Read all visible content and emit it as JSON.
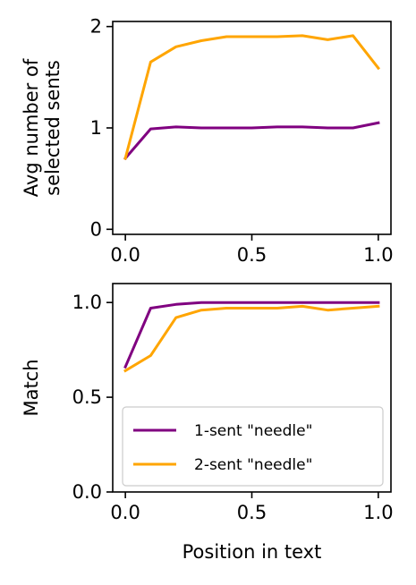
{
  "chart_data": [
    {
      "type": "line",
      "ylabel": [
        "Avg number of",
        "selected sents"
      ],
      "xlabel": "",
      "xlim": [
        0,
        1
      ],
      "ylim": [
        -0.05,
        2.05
      ],
      "xticks": [
        "0.0",
        "0.5",
        "1.0"
      ],
      "yticks": [
        "0",
        "1",
        "2"
      ],
      "x": [
        0.0,
        0.1,
        0.2,
        0.3,
        0.4,
        0.5,
        0.6,
        0.7,
        0.8,
        0.9,
        1.0
      ],
      "series": [
        {
          "values": [
            0.7,
            0.99,
            1.01,
            1.0,
            1.0,
            1.0,
            1.01,
            1.01,
            1.0,
            1.0,
            1.05
          ],
          "color": "#800080"
        },
        {
          "values": [
            0.7,
            1.65,
            1.8,
            1.86,
            1.9,
            1.9,
            1.9,
            1.91,
            1.87,
            1.91,
            1.59
          ],
          "color": "#FFA500"
        }
      ],
      "grid": false
    },
    {
      "type": "line",
      "ylabel": [
        "Match"
      ],
      "xlabel": "Position in text",
      "xlim": [
        0,
        1
      ],
      "ylim": [
        0.0,
        1.1
      ],
      "xticks": [
        "0.0",
        "0.5",
        "1.0"
      ],
      "yticks": [
        "0.0",
        "0.5",
        "1.0"
      ],
      "x": [
        0.0,
        0.1,
        0.2,
        0.3,
        0.4,
        0.5,
        0.6,
        0.7,
        0.8,
        0.9,
        1.0
      ],
      "series": [
        {
          "name": "1-sent \"needle\"",
          "values": [
            0.66,
            0.97,
            0.99,
            1.0,
            1.0,
            1.0,
            1.0,
            1.0,
            1.0,
            1.0,
            1.0
          ],
          "color": "#800080"
        },
        {
          "name": "2-sent \"needle\"",
          "values": [
            0.64,
            0.72,
            0.92,
            0.96,
            0.97,
            0.97,
            0.97,
            0.98,
            0.96,
            0.97,
            0.98
          ],
          "color": "#FFA500"
        }
      ],
      "legend": "lower-right",
      "grid": false
    }
  ]
}
